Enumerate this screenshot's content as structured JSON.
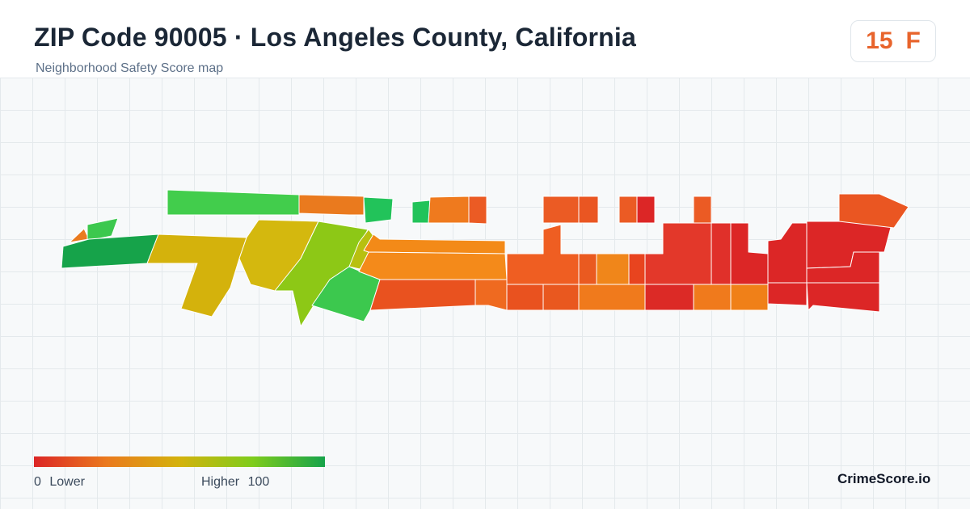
{
  "header": {
    "title": "ZIP Code 90005 · Los Angeles County, California",
    "subtitle": "Neighborhood Safety Score map"
  },
  "score": {
    "value": "15",
    "grade": "F",
    "color": "#e8642c"
  },
  "legend": {
    "min_value": "0",
    "min_label": "Lower",
    "max_label": "Higher",
    "max_value": "100",
    "colors": [
      "#dc2626",
      "#ea7a1e",
      "#d4b20c",
      "#7fcc1c",
      "#16a34a"
    ]
  },
  "brand": {
    "name": "CrimeScore.io"
  }
}
